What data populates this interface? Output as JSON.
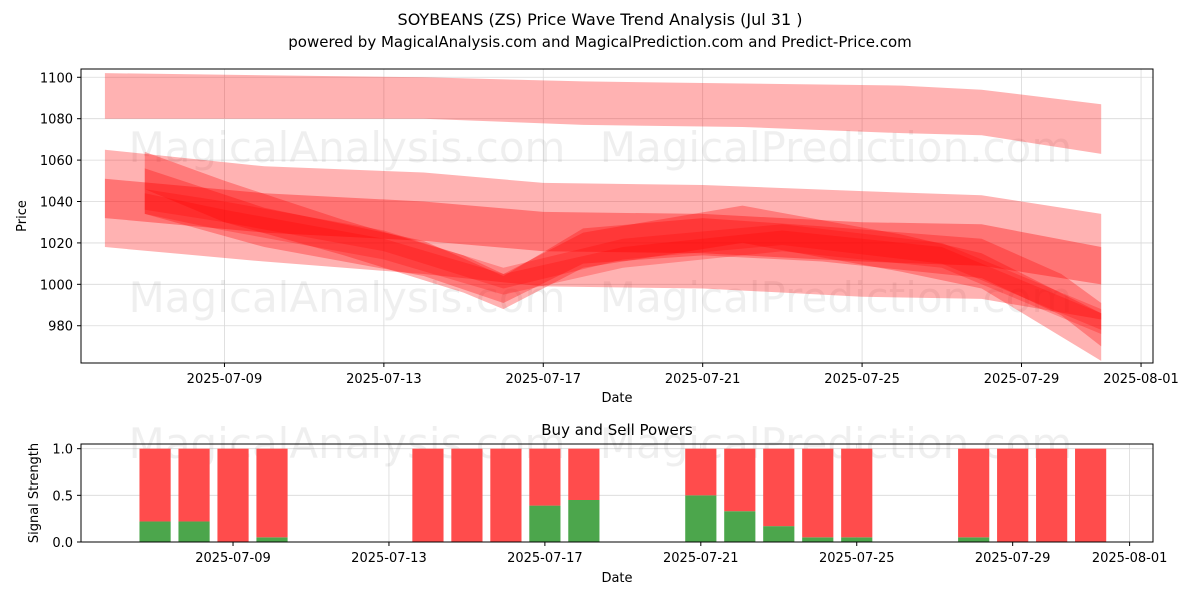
{
  "title": "SOYBEANS (ZS) Price Wave Trend Analysis (Jul 31 )",
  "subtitle": "powered by MagicalAnalysis.com and MagicalPrediction.com and Predict-Price.com",
  "watermarks": [
    "MagicalAnalysis.com",
    "MagicalPrediction.com"
  ],
  "colors": {
    "band": "#ff0000",
    "buy": "#4ca64c",
    "sell": "#ff4c4c",
    "grid": "#d9d9d9"
  },
  "chart_data": [
    {
      "type": "area",
      "title": "",
      "xlabel": "Date",
      "ylabel": "Price",
      "x_ticks": [
        "2025-07-09",
        "2025-07-13",
        "2025-07-17",
        "2025-07-21",
        "2025-07-25",
        "2025-07-29",
        "2025-08-01"
      ],
      "y_ticks": [
        980,
        1000,
        1020,
        1040,
        1060,
        1080,
        1100
      ],
      "xlim": [
        "2025-07-05",
        "2025-08-01"
      ],
      "ylim": [
        962,
        1104
      ],
      "grid": true,
      "bands": [
        {
          "x": [
            "2025-07-06",
            "2025-07-14",
            "2025-07-18",
            "2025-07-22",
            "2025-07-26",
            "2025-07-28",
            "2025-07-31"
          ],
          "upper": [
            1102,
            1100,
            1098,
            1097,
            1096,
            1094,
            1087
          ],
          "lower": [
            1080,
            1080,
            1077,
            1076,
            1073,
            1072,
            1063
          ]
        },
        {
          "x": [
            "2025-07-06",
            "2025-07-10",
            "2025-07-14",
            "2025-07-17",
            "2025-07-21",
            "2025-07-25",
            "2025-07-28",
            "2025-07-31"
          ],
          "upper": [
            1065,
            1057,
            1054,
            1049,
            1048,
            1045,
            1043,
            1034
          ],
          "lower": [
            1018,
            1011,
            1005,
            999,
            998,
            994,
            993,
            983
          ]
        },
        {
          "x": [
            "2025-07-06",
            "2025-07-10",
            "2025-07-14",
            "2025-07-17",
            "2025-07-21",
            "2025-07-25",
            "2025-07-28",
            "2025-07-31"
          ],
          "upper": [
            1051,
            1044,
            1040,
            1035,
            1034,
            1030,
            1029,
            1018
          ],
          "lower": [
            1032,
            1025,
            1021,
            1016,
            1015,
            1011,
            1009,
            1000
          ]
        },
        {
          "x": [
            "2025-07-07",
            "2025-07-10",
            "2025-07-14",
            "2025-07-16",
            "2025-07-18",
            "2025-07-21",
            "2025-07-24",
            "2025-07-28",
            "2025-07-30",
            "2025-07-31"
          ],
          "upper": [
            1056,
            1037,
            1021,
            1004,
            1027,
            1032,
            1028,
            1022,
            1005,
            991
          ],
          "lower": [
            1034,
            1018,
            1004,
            991,
            1010,
            1014,
            1011,
            1003,
            985,
            970
          ]
        },
        {
          "x": [
            "2025-07-07",
            "2025-07-09",
            "2025-07-12",
            "2025-07-15",
            "2025-07-16",
            "2025-07-18",
            "2025-07-22",
            "2025-07-26",
            "2025-07-28",
            "2025-07-31"
          ],
          "upper": [
            1064,
            1050,
            1031,
            1014,
            1005,
            1025,
            1038,
            1024,
            1015,
            986
          ],
          "lower": [
            1046,
            1030,
            1014,
            996,
            988,
            1008,
            1020,
            1006,
            998,
            963
          ]
        },
        {
          "x": [
            "2025-07-07",
            "2025-07-09",
            "2025-07-13",
            "2025-07-16",
            "2025-07-19",
            "2025-07-23",
            "2025-07-27",
            "2025-07-31"
          ],
          "upper": [
            1046,
            1040,
            1026,
            1008,
            1022,
            1029,
            1020,
            988
          ]
        },
        {
          "x": [
            "2025-07-07",
            "2025-07-09",
            "2025-07-13",
            "2025-07-16",
            "2025-07-19",
            "2025-07-23",
            "2025-07-27",
            "2025-07-31"
          ],
          "lower": [
            1034,
            1026,
            1012,
            995,
            1008,
            1016,
            1008,
            976
          ]
        }
      ]
    },
    {
      "type": "bar",
      "title": "Buy and Sell Powers",
      "xlabel": "Date",
      "ylabel": "Signal Strength",
      "x_ticks": [
        "2025-07-09",
        "2025-07-13",
        "2025-07-17",
        "2025-07-21",
        "2025-07-25",
        "2025-07-29",
        "2025-08-01"
      ],
      "y_ticks": [
        0.0,
        0.5,
        1.0
      ],
      "ylim": [
        0,
        1.05
      ],
      "grid": true,
      "stacked": true,
      "categories": [
        "2025-07-07",
        "2025-07-08",
        "2025-07-09",
        "2025-07-10",
        "2025-07-14",
        "2025-07-15",
        "2025-07-16",
        "2025-07-17",
        "2025-07-18",
        "2025-07-21",
        "2025-07-22",
        "2025-07-23",
        "2025-07-24",
        "2025-07-25",
        "2025-07-28",
        "2025-07-29",
        "2025-07-30",
        "2025-07-31"
      ],
      "series": [
        {
          "name": "buy",
          "values": [
            0.22,
            0.22,
            0.0,
            0.05,
            0.0,
            0.0,
            0.0,
            0.39,
            0.45,
            0.5,
            0.33,
            0.17,
            0.05,
            0.05,
            0.05,
            0.0,
            0.0,
            0.0
          ]
        },
        {
          "name": "sell",
          "values": [
            0.78,
            0.78,
            1.0,
            0.95,
            1.0,
            1.0,
            1.0,
            0.61,
            0.55,
            0.5,
            0.67,
            0.83,
            0.95,
            0.95,
            0.95,
            1.0,
            1.0,
            1.0
          ]
        }
      ]
    }
  ]
}
